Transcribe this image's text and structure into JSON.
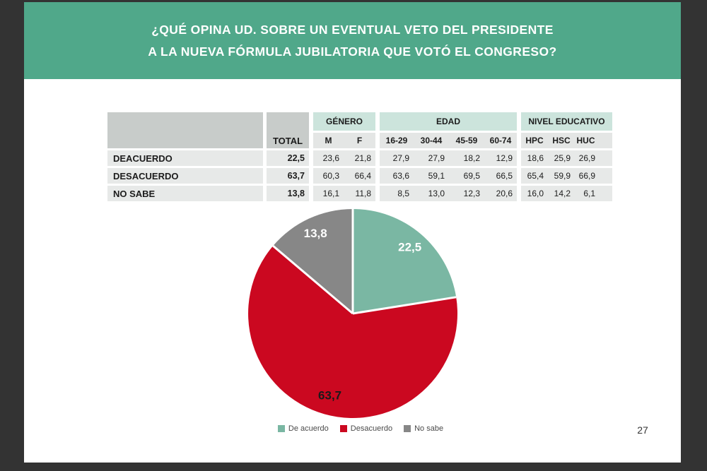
{
  "slide": {
    "title_line1": "¿QUÉ OPINA UD. SOBRE UN EVENTUAL VETO DEL PRESIDENTE",
    "title_line2": "A LA NUEVA FÓRMULA JUBILATORIA QUE VOTÓ EL CONGRESO?",
    "page_number": "27"
  },
  "colors": {
    "banner_green": "#50a88a",
    "table_group_header": "#cce4dc",
    "table_header_gray": "#c8ccca",
    "table_row_gray": "#e7e9e8",
    "pie_green": "#7ab7a3",
    "pie_red": "#cb0820",
    "pie_gray": "#878787",
    "frame_dark": "#333333"
  },
  "table": {
    "total_label": "TOTAL",
    "groups": [
      {
        "label": "GÉNERO",
        "cols": [
          "M",
          "F"
        ]
      },
      {
        "label": "EDAD",
        "cols": [
          "16-29",
          "30-44",
          "45-59",
          "60-74"
        ]
      },
      {
        "label": "NIVEL EDUCATIVO",
        "cols": [
          "HPC",
          "HSC",
          "HUC"
        ]
      }
    ],
    "rows": [
      {
        "label": "DEACUERDO",
        "total": "22,5",
        "values": [
          "23,6",
          "21,8",
          "27,9",
          "27,9",
          "18,2",
          "12,9",
          "18,6",
          "25,9",
          "26,9"
        ]
      },
      {
        "label": "DESACUERDO",
        "total": "63,7",
        "values": [
          "60,3",
          "66,4",
          "63,6",
          "59,1",
          "69,5",
          "66,5",
          "65,4",
          "59,9",
          "66,9"
        ]
      },
      {
        "label": "NO SABE",
        "total": "13,8",
        "values": [
          "16,1",
          "11,8",
          "8,5",
          "13,0",
          "12,3",
          "20,6",
          "16,0",
          "14,2",
          "6,1"
        ]
      }
    ]
  },
  "chart_data": {
    "type": "pie",
    "title": "",
    "categories": [
      "De acuerdo",
      "Desacuerdo",
      "No sabe"
    ],
    "values": [
      22.5,
      63.7,
      13.8
    ],
    "labels": [
      "22,5",
      "63,7",
      "13,8"
    ],
    "colors": [
      "#7ab7a3",
      "#cb0820",
      "#878787"
    ],
    "label_colors": [
      "#ffffff",
      "#1a1a1a",
      "#ffffff"
    ],
    "start_angle_deg": 0,
    "direction": "clockwise",
    "legend_position": "bottom"
  }
}
